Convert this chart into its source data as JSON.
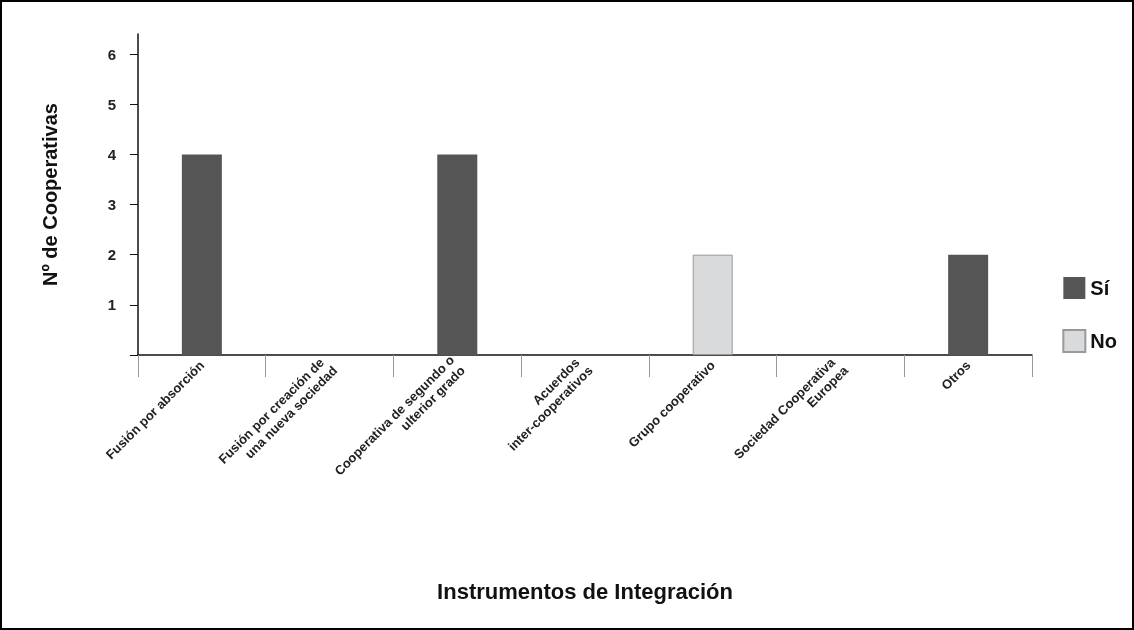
{
  "chart_data": {
    "type": "bar",
    "xlabel": "Instrumentos de Integración",
    "ylabel": "Nº de Cooperativas",
    "categories": [
      "Fusión por absorción",
      "Fusión por creación de una nueva sociedad",
      "Cooperativa de segundo o ulterior grado",
      "Acuerdos inter-cooperativos",
      "Grupo cooperativo",
      "Sociedad Cooperativa Europea",
      "Otros"
    ],
    "series": [
      {
        "name": "Sí",
        "color": "#555555",
        "values": [
          4,
          null,
          4,
          null,
          null,
          null,
          2
        ]
      },
      {
        "name": "No",
        "color": "#d9dadc",
        "values": [
          null,
          null,
          null,
          null,
          2,
          null,
          null
        ]
      }
    ],
    "ylim": [
      0,
      6.4
    ],
    "yticks": [
      {
        "value": 0,
        "label": null
      },
      1,
      2,
      3,
      4,
      5,
      6
    ],
    "grid": false,
    "legend": "right"
  }
}
